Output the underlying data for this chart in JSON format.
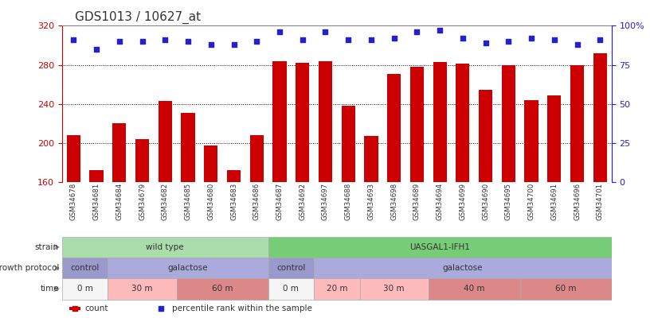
{
  "title": "GDS1013 / 10627_at",
  "samples": [
    "GSM34678",
    "GSM34681",
    "GSM34684",
    "GSM34679",
    "GSM34682",
    "GSM34685",
    "GSM34680",
    "GSM34683",
    "GSM34686",
    "GSM34687",
    "GSM34692",
    "GSM34697",
    "GSM34688",
    "GSM34693",
    "GSM34698",
    "GSM34689",
    "GSM34694",
    "GSM34699",
    "GSM34690",
    "GSM34695",
    "GSM34700",
    "GSM34691",
    "GSM34696",
    "GSM34701"
  ],
  "counts": [
    208,
    172,
    220,
    204,
    243,
    231,
    197,
    172,
    208,
    284,
    282,
    284,
    238,
    207,
    271,
    278,
    283,
    281,
    254,
    280,
    244,
    249,
    280,
    292
  ],
  "percentiles": [
    91,
    85,
    90,
    90,
    91,
    90,
    88,
    88,
    90,
    96,
    91,
    96,
    91,
    91,
    92,
    96,
    97,
    92,
    89,
    90,
    92,
    91,
    88,
    91
  ],
  "ylim_left": [
    160,
    320
  ],
  "ylim_right": [
    0,
    100
  ],
  "yticks_left": [
    160,
    200,
    240,
    280,
    320
  ],
  "yticks_right": [
    0,
    25,
    50,
    75,
    100
  ],
  "bar_color": "#cc0000",
  "dot_color": "#2222cc",
  "strain_groups": [
    {
      "label": "wild type",
      "start": 0,
      "end": 9,
      "color": "#aaddaa"
    },
    {
      "label": "UASGAL1-IFH1",
      "start": 9,
      "end": 24,
      "color": "#77cc77"
    }
  ],
  "protocol_groups": [
    {
      "label": "control",
      "start": 0,
      "end": 2,
      "color": "#9999cc"
    },
    {
      "label": "galactose",
      "start": 2,
      "end": 9,
      "color": "#aaaadd"
    },
    {
      "label": "control",
      "start": 9,
      "end": 11,
      "color": "#9999cc"
    },
    {
      "label": "galactose",
      "start": 11,
      "end": 24,
      "color": "#aaaadd"
    }
  ],
  "time_groups": [
    {
      "label": "0 m",
      "start": 0,
      "end": 2,
      "color": "#f5f5f5"
    },
    {
      "label": "30 m",
      "start": 2,
      "end": 5,
      "color": "#ffbbbb"
    },
    {
      "label": "60 m",
      "start": 5,
      "end": 9,
      "color": "#dd8888"
    },
    {
      "label": "0 m",
      "start": 9,
      "end": 11,
      "color": "#f5f5f5"
    },
    {
      "label": "20 m",
      "start": 11,
      "end": 13,
      "color": "#ffbbbb"
    },
    {
      "label": "30 m",
      "start": 13,
      "end": 16,
      "color": "#ffbbbb"
    },
    {
      "label": "40 m",
      "start": 16,
      "end": 20,
      "color": "#dd8888"
    },
    {
      "label": "60 m",
      "start": 20,
      "end": 24,
      "color": "#dd8888"
    }
  ],
  "bg_color": "#ffffff",
  "left_axis_color": "#cc0000",
  "right_axis_color": "#2222cc",
  "title_fontsize": 11
}
